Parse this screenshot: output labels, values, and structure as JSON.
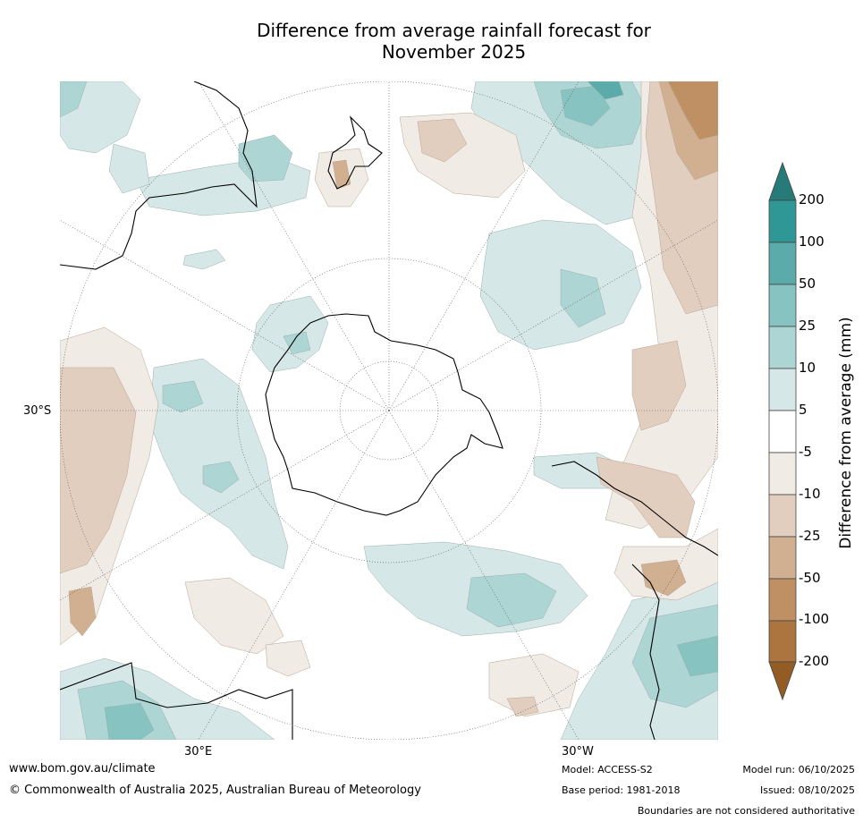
{
  "title": {
    "line1": "Difference from average rainfall forecast for",
    "line2": "November 2025"
  },
  "map": {
    "projection": "south polar stereographic",
    "grid_labels": {
      "lat": "30°S",
      "lon_east": "30°E",
      "lon_west": "30°W"
    }
  },
  "legend": {
    "title": "Difference from average (mm)",
    "ticks": [
      "200",
      "100",
      "50",
      "25",
      "10",
      "5",
      "-5",
      "-10",
      "-25",
      "-50",
      "-100",
      "-200"
    ],
    "colors": {
      "gt200": "#267a78",
      "100_200": "#2f9896",
      "50_100": "#5aabaa",
      "25_50": "#86c3c1",
      "10_25": "#add5d4",
      "5_10": "#d5e8e7",
      "neutral": "#ffffff",
      "m5_m10": "#f1ebe5",
      "m10_m25": "#e2cebe",
      "m25_m50": "#d0b090",
      "m50_m100": "#be9063",
      "m100_m200": "#ac7540",
      "lt_m200": "#935c24"
    }
  },
  "footer": {
    "url": "www.bom.gov.au/climate",
    "copyright": "© Commonwealth of Australia 2025, Australian Bureau of Meteorology",
    "model": "Model: ACCESS-S2",
    "base_period": "Base period: 1981-2018",
    "model_run": "Model run: 06/10/2025",
    "issued": "Issued: 08/10/2025",
    "disclaimer": "Boundaries are not considered authoritative"
  }
}
